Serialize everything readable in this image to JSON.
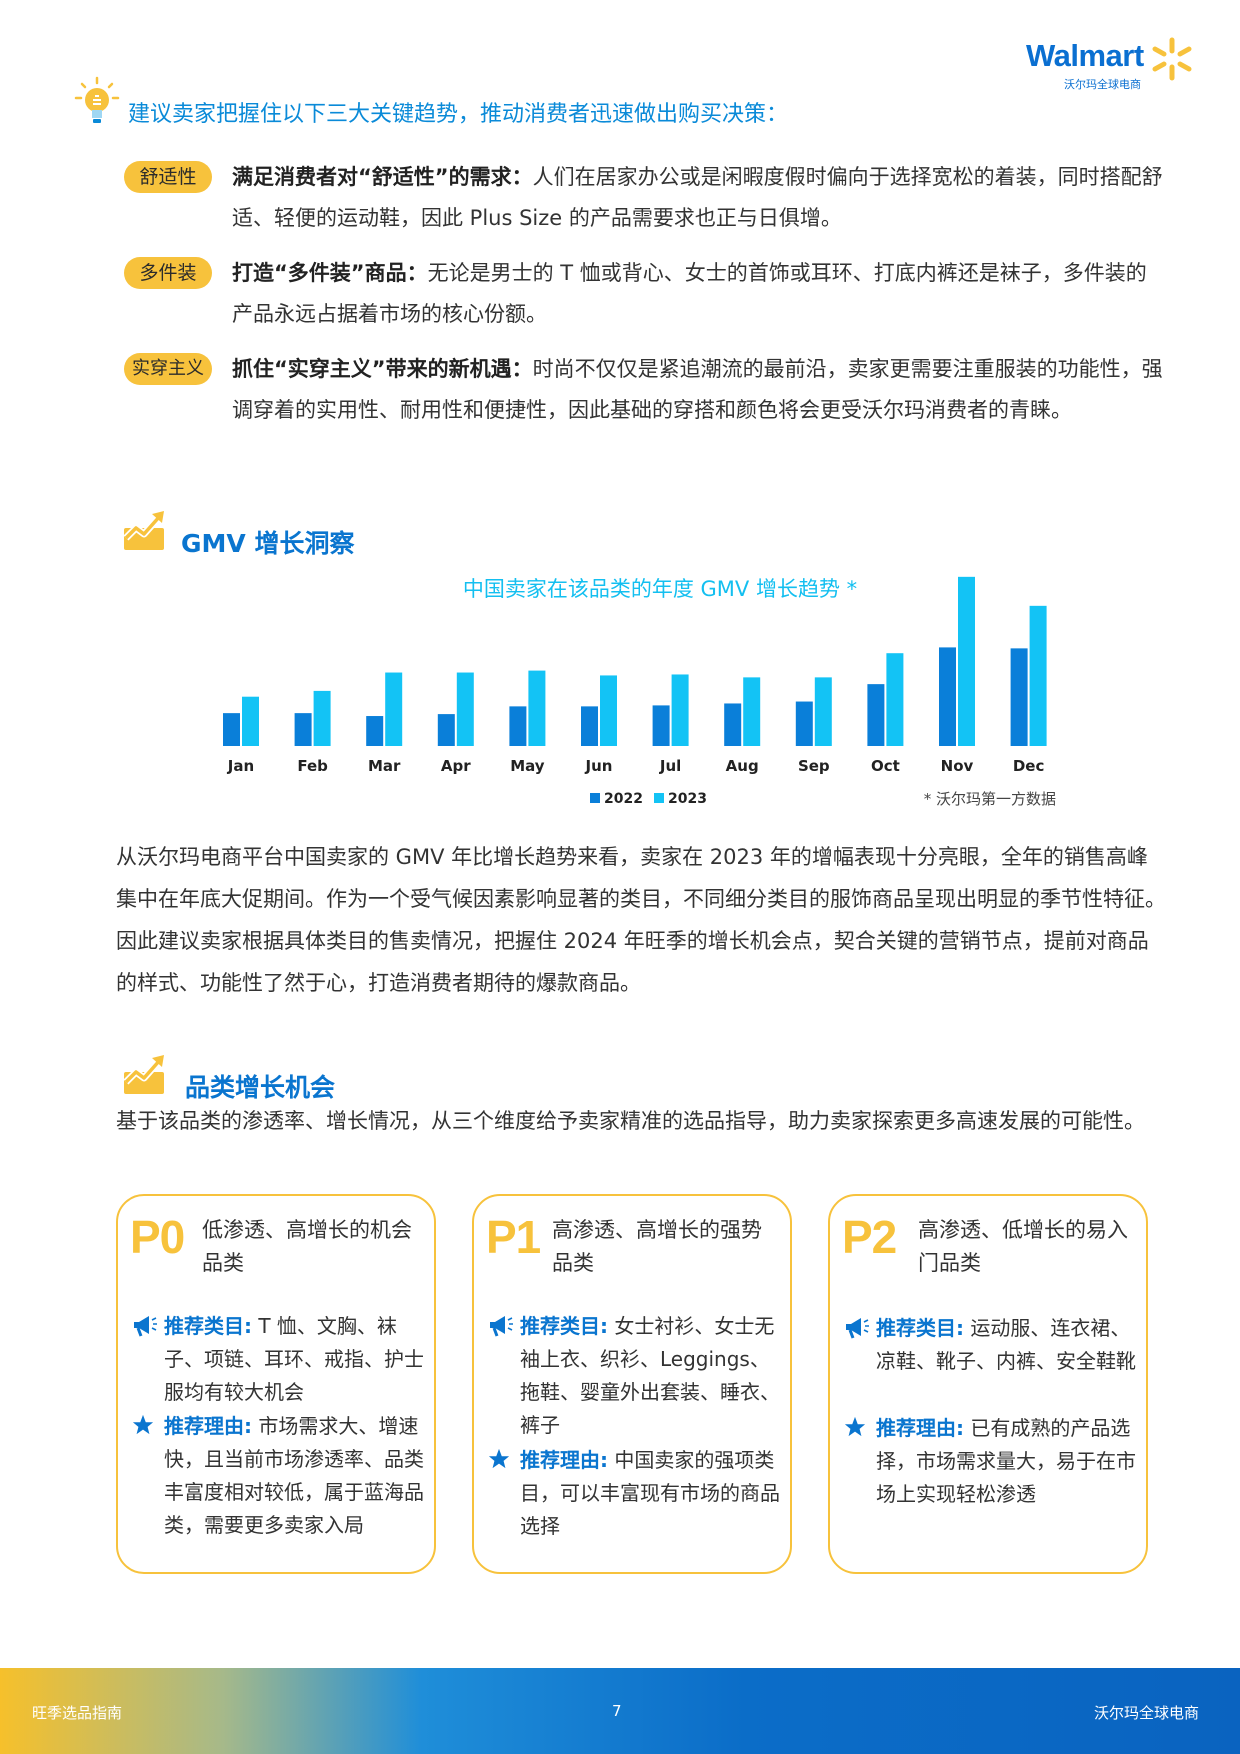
{
  "logo": {
    "brand": "Walmart",
    "sub": "沃尔玛全球电商"
  },
  "intro": "建议卖家把握住以下三大关键趋势，推动消费者迅速做出购买决策：",
  "trends": [
    {
      "tag": "舒适性",
      "title": "满足消费者对“舒适性”的需求：",
      "body": "人们在居家办公或是闲暇度假时偏向于选择宽松的着装，同时搭配舒适、轻便的运动鞋，因此 Plus Size 的产品需要求也正与日俱增。"
    },
    {
      "tag": "多件装",
      "title": "打造“多件装”商品：",
      "body": "无论是男士的 T 恤或背心、女士的首饰或耳环、打底内裤还是袜子，多件装的产品永远占据着市场的核心份额。"
    },
    {
      "tag": "实穿主义",
      "title": "抓住“实穿主义”带来的新机遇：",
      "body": "时尚不仅仅是紧追潮流的最前沿，卖家更需要注重服装的功能性，强调穿着的实用性、耐用性和便捷性，因此基础的穿搭和颜色将会更受沃尔玛消费者的青睐。"
    }
  ],
  "gmv_section": {
    "title": "GMV 增长洞察"
  },
  "chart_data": {
    "type": "bar",
    "title": "中国卖家在该品类的年度 GMV 增长趋势 *",
    "categories": [
      "Jan",
      "Feb",
      "Mar",
      "Apr",
      "May",
      "Jun",
      "Jul",
      "Aug",
      "Sep",
      "Oct",
      "Nov",
      "Dec"
    ],
    "series": [
      {
        "name": "2022",
        "values": [
          34,
          34,
          31,
          33,
          41,
          41,
          42,
          44,
          46,
          64,
          102,
          101
        ],
        "color": "#0a7fd9"
      },
      {
        "name": "2023",
        "values": [
          51,
          57,
          76,
          76,
          78,
          73,
          74,
          71,
          71,
          96,
          175,
          145
        ],
        "color": "#13c3f5"
      }
    ],
    "legend_position": "bottom-center",
    "note": "* 沃尔玛第一方数据",
    "ylim": [
      0,
      180
    ],
    "grid": false
  },
  "gmv_paragraph": "从沃尔玛电商平台中国卖家的 GMV 年比增长趋势来看，卖家在 2023 年的增幅表现十分亮眼，全年的销售高峰集中在年底大促期间。作为一个受气候因素影响显著的类目，不同细分类目的服饰商品呈现出明显的季节性特征。因此建议卖家根据具体类目的售卖情况，把握住 2024 年旺季的增长机会点，契合关键的营销节点，提前对商品的样式、功能性了然于心，打造消费者期待的爆款商品。",
  "category_section": {
    "title": "品类增长机会",
    "desc": "基于该品类的渗透率、增长情况，从三个维度给予卖家精准的选品指导，助力卖家探索更多高速发展的可能性。"
  },
  "cards": [
    {
      "code": "P0",
      "subtitle": "低渗透、高增长的机会品类",
      "rec_label": "推荐类目:",
      "rec_text": " T 恤、文胸、袜子、项链、耳环、戒指、护士服均有较大机会",
      "reason_label": "推荐理由:",
      "reason_text": " 市场需求大、增速快，且当前市场渗透率、品类丰富度相对较低，属于蓝海品类，需要更多卖家入局"
    },
    {
      "code": "P1",
      "subtitle": "高渗透、高增长的强势品类",
      "rec_label": "推荐类目:",
      "rec_text": " 女士衬衫、女士无袖上衣、织衫、Leggings、拖鞋、婴童外出套装、睡衣、裤子",
      "reason_label": "推荐理由:",
      "reason_text": " 中国卖家的强项类目，可以丰富现有市场的商品选择"
    },
    {
      "code": "P2",
      "subtitle": "高渗透、低增长的易入门品类",
      "rec_label": "推荐类目:",
      "rec_text": " 运动服、连衣裙、凉鞋、靴子、内裤、安全鞋靴",
      "reason_label": "推荐理由:",
      "reason_text": " 已有成熟的产品选择，市场需求量大，易于在市场上实现轻松渗透"
    }
  ],
  "footer": {
    "left": "旺季选品指南",
    "page": "7",
    "right": "沃尔玛全球电商"
  }
}
